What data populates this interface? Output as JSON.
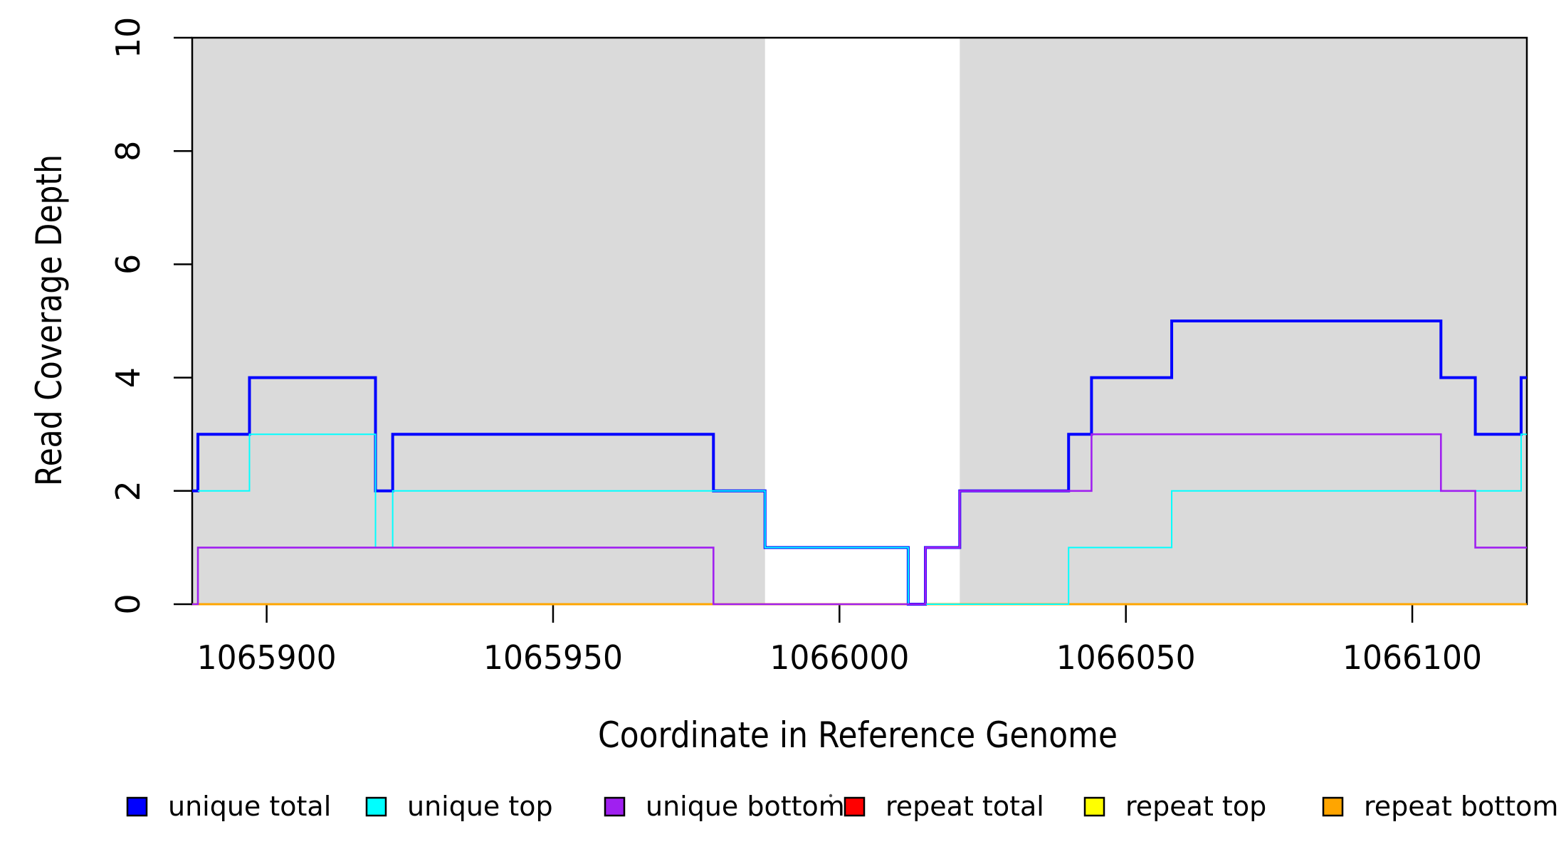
{
  "figure": {
    "xlabel": "Coordinate in Reference Genome",
    "ylabel": "Read Coverage Depth"
  },
  "chart_data": {
    "type": "line",
    "subtype": "step",
    "title": "",
    "xlabel": "Coordinate in Reference Genome",
    "ylabel": "Read Coverage Depth",
    "xlim": [
      1065887,
      1066120
    ],
    "ylim": [
      0,
      10
    ],
    "xticks": [
      1065900,
      1065950,
      1066000,
      1066050,
      1066100
    ],
    "yticks": [
      0,
      2,
      4,
      6,
      8,
      10
    ],
    "grid": false,
    "shaded_regions": [
      {
        "name": "unique-region-1",
        "x0": 1065887,
        "x1": 1065987,
        "color": "#dadada"
      },
      {
        "name": "unique-region-2",
        "x0": 1066021,
        "x1": 1066120,
        "color": "#dadada"
      }
    ],
    "series": [
      {
        "name": "unique total",
        "color": "#0000ff",
        "steps": [
          [
            1065887,
            2
          ],
          [
            1065888,
            3
          ],
          [
            1065897,
            4
          ],
          [
            1065919,
            2
          ],
          [
            1065922,
            3
          ],
          [
            1065978,
            2
          ],
          [
            1065987,
            1
          ],
          [
            1066012,
            0
          ],
          [
            1066015,
            1
          ],
          [
            1066021,
            2
          ],
          [
            1066040,
            3
          ],
          [
            1066044,
            4
          ],
          [
            1066058,
            5
          ],
          [
            1066105,
            4
          ],
          [
            1066111,
            3
          ],
          [
            1066119,
            4
          ]
        ]
      },
      {
        "name": "unique top",
        "color": "#00ffff",
        "steps": [
          [
            1065888,
            2
          ],
          [
            1065897,
            3
          ],
          [
            1065919,
            1
          ],
          [
            1065922,
            2
          ],
          [
            1065987,
            1
          ],
          [
            1066012,
            0
          ],
          [
            1066040,
            1
          ],
          [
            1066058,
            2
          ],
          [
            1066119,
            3
          ]
        ]
      },
      {
        "name": "unique bottom",
        "color": "#a020f0",
        "steps": [
          [
            1065887,
            0
          ],
          [
            1065888,
            1
          ],
          [
            1065978,
            0
          ],
          [
            1066015,
            1
          ],
          [
            1066021,
            2
          ],
          [
            1066044,
            3
          ],
          [
            1066105,
            2
          ],
          [
            1066111,
            1
          ]
        ]
      },
      {
        "name": "repeat total",
        "color": "#ff0000",
        "steps": [
          [
            1065887,
            0
          ]
        ]
      },
      {
        "name": "repeat top",
        "color": "#ffff00",
        "steps": [
          [
            1065887,
            0
          ]
        ]
      },
      {
        "name": "repeat bottom",
        "color": "#ffa500",
        "steps": [
          [
            1065887,
            0
          ]
        ]
      }
    ],
    "render_order": [
      "repeat total",
      "repeat top",
      "repeat bottom",
      "unique total",
      "unique top",
      "unique bottom"
    ],
    "legend": {
      "position": "bottom",
      "entries": [
        {
          "label": "unique total",
          "color": "#0000ff"
        },
        {
          "label": "unique top",
          "color": "#00ffff"
        },
        {
          "label": "unique bottom",
          "color": "#a020f0"
        },
        {
          "label": "repeat total",
          "color": "#ff0000"
        },
        {
          "label": "repeat top",
          "color": "#ffff00"
        },
        {
          "label": "repeat bottom",
          "color": "#ffa500"
        }
      ]
    }
  }
}
